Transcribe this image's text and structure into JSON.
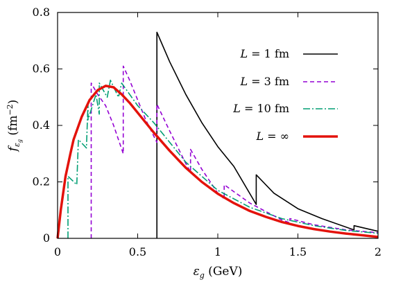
{
  "chart_data": {
    "type": "line",
    "title": "",
    "xlabel": "εg (GeV)",
    "ylabel": "fεg (fm⁻²)",
    "xlim": [
      0,
      2
    ],
    "ylim": [
      0,
      0.8
    ],
    "xticks": [
      0,
      0.5,
      1,
      1.5,
      2
    ],
    "xtick_labels": [
      "0",
      "0.5",
      "1",
      "1.5",
      "2"
    ],
    "yticks": [
      0,
      0.2,
      0.4,
      0.6,
      0.8
    ],
    "ytick_labels": [
      "0",
      "0.2",
      "0.4",
      "0.6",
      "0.8"
    ],
    "grid": false,
    "legend_placement": "top-right",
    "series": [
      {
        "name": "L = 1 fm",
        "color": "#000000",
        "dash": "solid",
        "width": 1.6,
        "x": [
          0.62,
          0.62,
          0.7,
          0.8,
          0.9,
          1.0,
          1.1,
          1.24,
          1.24,
          1.35,
          1.5,
          1.65,
          1.85,
          1.85,
          2.0
        ],
        "y": [
          0.0,
          0.73,
          0.625,
          0.51,
          0.41,
          0.325,
          0.255,
          0.12,
          0.225,
          0.16,
          0.105,
          0.07,
          0.03,
          0.045,
          0.025
        ]
      },
      {
        "name": "L = 3 fm",
        "color": "#9400d3",
        "dash": "6,4",
        "width": 1.6,
        "x": [
          0.21,
          0.21,
          0.25,
          0.3,
          0.35,
          0.41,
          0.41,
          0.45,
          0.5,
          0.55,
          0.62,
          0.62,
          0.7,
          0.8,
          0.83,
          0.83,
          0.9,
          1.0,
          1.04,
          1.04,
          1.2,
          1.4,
          1.45,
          1.45,
          1.6,
          1.8,
          2.0
        ],
        "y": [
          0.0,
          0.55,
          0.51,
          0.47,
          0.4,
          0.3,
          0.61,
          0.56,
          0.49,
          0.42,
          0.34,
          0.475,
          0.38,
          0.265,
          0.235,
          0.315,
          0.245,
          0.16,
          0.14,
          0.19,
          0.125,
          0.065,
          0.055,
          0.07,
          0.048,
          0.03,
          0.02
        ]
      },
      {
        "name": "L = 10 fm",
        "color": "#009e73",
        "dash": "10,3,2,3",
        "width": 1.6,
        "x": [
          0.065,
          0.065,
          0.12,
          0.13,
          0.18,
          0.19,
          0.19,
          0.24,
          0.26,
          0.26,
          0.31,
          0.33,
          0.38,
          0.4,
          0.45,
          0.5,
          0.55,
          0.6,
          0.7,
          0.8,
          0.9,
          1.0,
          1.2,
          1.4,
          1.6,
          1.8,
          2.0
        ],
        "y": [
          0.0,
          0.22,
          0.19,
          0.35,
          0.32,
          0.48,
          0.42,
          0.51,
          0.44,
          0.55,
          0.5,
          0.56,
          0.5,
          0.55,
          0.51,
          0.47,
          0.44,
          0.41,
          0.34,
          0.27,
          0.22,
          0.17,
          0.11,
          0.07,
          0.045,
          0.028,
          0.018
        ]
      },
      {
        "name": "L = ∞",
        "color": "#e3120b",
        "dash": "solid",
        "width": 3.5,
        "x": [
          0.0,
          0.02,
          0.05,
          0.08,
          0.1,
          0.15,
          0.2,
          0.25,
          0.3,
          0.35,
          0.4,
          0.45,
          0.5,
          0.6,
          0.7,
          0.8,
          0.9,
          1.0,
          1.1,
          1.2,
          1.3,
          1.4,
          1.5,
          1.6,
          1.7,
          1.8,
          1.9,
          2.0
        ],
        "y": [
          0.0,
          0.1,
          0.22,
          0.3,
          0.35,
          0.43,
          0.49,
          0.525,
          0.54,
          0.535,
          0.51,
          0.48,
          0.445,
          0.375,
          0.31,
          0.25,
          0.2,
          0.158,
          0.125,
          0.097,
          0.076,
          0.058,
          0.044,
          0.033,
          0.024,
          0.017,
          0.011,
          0.005
        ]
      }
    ]
  }
}
